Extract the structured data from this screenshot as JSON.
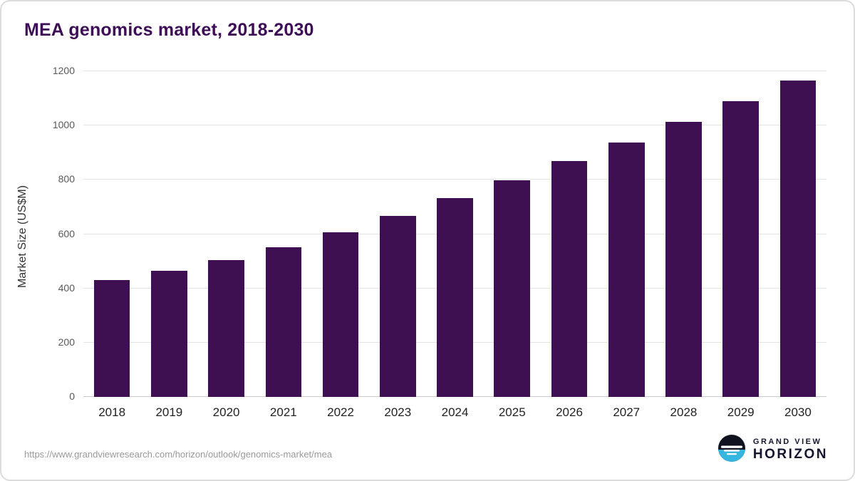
{
  "title": "MEA genomics market, 2018-2030",
  "footer": {
    "url": "https://www.grandviewresearch.com/horizon/outlook/genomics-market/mea"
  },
  "logo": {
    "line1": "GRAND VIEW",
    "line2": "HORIZON",
    "icon": "horizon-globe-icon",
    "icon_dark": "#10131f",
    "icon_teal": "#35b6e0"
  },
  "chart_data": {
    "type": "bar",
    "title": "MEA genomics market, 2018-2030",
    "categories": [
      "2018",
      "2019",
      "2020",
      "2021",
      "2022",
      "2023",
      "2024",
      "2025",
      "2026",
      "2027",
      "2028",
      "2029",
      "2030"
    ],
    "values": [
      430,
      465,
      503,
      551,
      607,
      667,
      733,
      797,
      868,
      938,
      1013,
      1090,
      1165
    ],
    "xlabel": "",
    "ylabel": "Market Size (US$M)",
    "ylim": [
      0,
      1200
    ],
    "yticks": [
      0,
      200,
      400,
      600,
      800,
      1000,
      1200
    ],
    "grid": true,
    "legend": "none",
    "bar_color": "#3e1052"
  }
}
